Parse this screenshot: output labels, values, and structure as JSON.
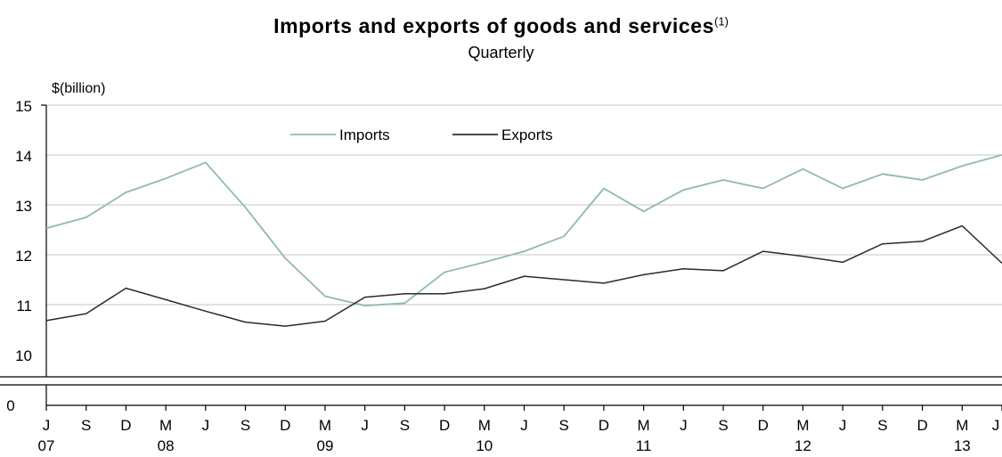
{
  "chart_data": {
    "type": "line",
    "title": "Imports and exports of goods and services",
    "title_footnote": "(1)",
    "subtitle": "Quarterly",
    "ylabel": "$(billion)",
    "ylim": [
      10,
      15
    ],
    "y_ticks": [
      "15",
      "14",
      "13",
      "12",
      "11",
      "10"
    ],
    "y_zero_label": "0",
    "axis_break": true,
    "grid": true,
    "legend_position": "top-center",
    "x": [
      "J 07",
      "S 07",
      "D 07",
      "M 08",
      "J 08",
      "S 08",
      "D 08",
      "M 09",
      "J 09",
      "S 09",
      "D 09",
      "M 10",
      "J 10",
      "S 10",
      "D 10",
      "M 11",
      "J 11",
      "S 11",
      "D 11",
      "M 12",
      "J 12",
      "S 12",
      "D 12",
      "M 13",
      "J 13"
    ],
    "x_tick_months": [
      "J",
      "S",
      "D",
      "M",
      "J",
      "S",
      "D",
      "M",
      "J",
      "S",
      "D",
      "M",
      "J",
      "S",
      "D",
      "M",
      "J",
      "S",
      "D",
      "M",
      "J",
      "S",
      "D",
      "M",
      "J"
    ],
    "x_tick_years": [
      {
        "index": 0,
        "label": "07"
      },
      {
        "index": 3,
        "label": "08"
      },
      {
        "index": 7,
        "label": "09"
      },
      {
        "index": 11,
        "label": "10"
      },
      {
        "index": 15,
        "label": "11"
      },
      {
        "index": 19,
        "label": "12"
      },
      {
        "index": 23,
        "label": "13"
      }
    ],
    "series": [
      {
        "name": "Imports",
        "color": "#8fb8b4",
        "values": [
          12.53,
          12.75,
          13.25,
          13.53,
          13.85,
          12.95,
          11.93,
          11.17,
          10.98,
          11.03,
          11.65,
          11.85,
          12.07,
          12.37,
          13.33,
          12.87,
          13.3,
          13.5,
          13.33,
          13.72,
          13.33,
          13.62,
          13.5,
          13.78,
          14.0
        ]
      },
      {
        "name": "Exports",
        "color": "#2b2b2b",
        "values": [
          10.68,
          10.82,
          11.33,
          11.1,
          10.87,
          10.65,
          10.57,
          10.67,
          11.15,
          11.22,
          11.22,
          11.32,
          11.57,
          11.5,
          11.43,
          11.6,
          11.72,
          11.68,
          12.07,
          11.97,
          11.85,
          12.22,
          12.27,
          12.58,
          11.83
        ]
      }
    ]
  }
}
